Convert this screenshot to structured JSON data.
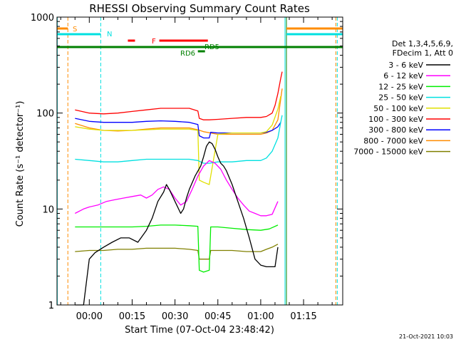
{
  "chart_data": {
    "type": "line",
    "title": "RHESSI Observing Summary Count Rates",
    "xlabel": "Start Time (07-Oct-04 23:48:42)",
    "ylabel": "Count Rate (s⁻¹ detector⁻¹)",
    "yscale": "log",
    "ylim": [
      1,
      1000
    ],
    "xlim_min": [
      -11.3,
      88.7
    ],
    "x_ticks": [
      {
        "t": 0,
        "label": "00:00"
      },
      {
        "t": 15,
        "label": "00:15"
      },
      {
        "t": 30,
        "label": "00:30"
      },
      {
        "t": 45,
        "label": "00:45"
      },
      {
        "t": 60,
        "label": "01:00"
      },
      {
        "t": 75,
        "label": "01:15"
      }
    ],
    "y_ticks": [
      {
        "v": 1,
        "label": "1"
      },
      {
        "v": 10,
        "label": "10"
      },
      {
        "v": 100,
        "label": "100"
      },
      {
        "v": 1000,
        "label": "1000"
      }
    ],
    "legend_title_lines": [
      "Det 1,3,4,5,6,9,",
      "FDecim 1, Att 0"
    ],
    "legend_placement": "right",
    "footer": "21-Oct-2021 10:03",
    "series": [
      {
        "name": "3 - 6 keV",
        "color": "#000000",
        "x": [
          -5,
          -4,
          -3,
          -2,
          0,
          2,
          5,
          8,
          11,
          14,
          17,
          20,
          22,
          24,
          26,
          27,
          28,
          30,
          32,
          33,
          34,
          35,
          37,
          39,
          40,
          41,
          42,
          43,
          44,
          45,
          46,
          47,
          48,
          50,
          52,
          54,
          56,
          58,
          60,
          62,
          64,
          65,
          66
        ],
        "y": [
          1,
          1,
          1,
          1,
          3,
          3.5,
          4,
          4.5,
          5,
          5,
          4.5,
          6,
          8,
          12,
          15,
          18,
          16,
          12,
          9,
          10,
          13,
          16,
          22,
          28,
          35,
          45,
          50,
          48,
          42,
          35,
          30,
          28,
          25,
          18,
          12,
          8,
          5,
          3,
          2.6,
          2.5,
          2.5,
          2.5,
          4
        ]
      },
      {
        "name": "6 - 12 keV",
        "color": "#ff00ff",
        "x": [
          -5,
          -2,
          0,
          3,
          6,
          9,
          12,
          15,
          18,
          20,
          22,
          24,
          26,
          28,
          30,
          32,
          34,
          36,
          38,
          40,
          42,
          44,
          46,
          48,
          50,
          52,
          54,
          56,
          58,
          60,
          62,
          64,
          66
        ],
        "y": [
          9,
          10,
          10.5,
          11,
          12,
          12.5,
          13,
          13.5,
          14,
          13,
          14,
          16,
          17,
          16,
          13,
          11,
          12,
          16,
          22,
          28,
          32,
          30,
          26,
          20,
          16,
          13,
          11,
          9.5,
          9,
          8.5,
          8.5,
          8.8,
          12
        ]
      },
      {
        "name": "12 - 25 keV",
        "color": "#00ee00",
        "x": [
          -5,
          0,
          5,
          10,
          15,
          20,
          25,
          30,
          35,
          38,
          38.5,
          40,
          42,
          42.5,
          45,
          50,
          55,
          60,
          63,
          66
        ],
        "y": [
          6.5,
          6.5,
          6.5,
          6.5,
          6.5,
          6.6,
          6.8,
          6.8,
          6.7,
          6.6,
          2.3,
          2.2,
          2.3,
          6.5,
          6.5,
          6.3,
          6.1,
          6,
          6.2,
          6.8
        ]
      },
      {
        "name": "25 - 50 keV",
        "color": "#00e0e0",
        "x": [
          -5,
          0,
          5,
          10,
          15,
          20,
          25,
          30,
          35,
          38,
          40,
          42,
          45,
          50,
          55,
          60,
          62,
          64,
          66,
          67,
          67.5
        ],
        "y": [
          33,
          32,
          31,
          31,
          32,
          33,
          33,
          33,
          33,
          32,
          30,
          30,
          31,
          31,
          32,
          32,
          34,
          40,
          55,
          80,
          95
        ]
      },
      {
        "name": "50 - 100 keV",
        "color": "#e0e000",
        "x": [
          -5,
          0,
          5,
          10,
          15,
          20,
          25,
          30,
          35,
          38,
          38.5,
          40,
          42,
          45,
          50,
          55,
          60,
          62,
          64,
          66,
          67
        ],
        "y": [
          72,
          68,
          66,
          66,
          66,
          67,
          68,
          68,
          68,
          66,
          20,
          19,
          18,
          60,
          62,
          62,
          62,
          64,
          75,
          110,
          150
        ]
      },
      {
        "name": "100 - 300 keV",
        "color": "#ff0000",
        "x": [
          -5,
          0,
          5,
          10,
          15,
          20,
          25,
          30,
          35,
          38,
          38.5,
          40,
          42,
          45,
          50,
          55,
          60,
          62,
          64,
          65,
          66,
          67,
          67.5
        ],
        "y": [
          108,
          100,
          98,
          100,
          104,
          108,
          112,
          112,
          112,
          105,
          88,
          85,
          85,
          86,
          88,
          90,
          90,
          92,
          100,
          120,
          160,
          230,
          270
        ]
      },
      {
        "name": "300 - 800 keV",
        "color": "#0000ff",
        "x": [
          -5,
          0,
          5,
          10,
          15,
          20,
          25,
          30,
          35,
          38,
          38.5,
          40,
          42,
          42.5,
          45,
          50,
          55,
          60,
          62,
          64,
          66,
          67
        ],
        "y": [
          88,
          82,
          80,
          80,
          80,
          82,
          83,
          82,
          80,
          76,
          58,
          55,
          55,
          63,
          62,
          62,
          62,
          62,
          63,
          66,
          72,
          80
        ]
      },
      {
        "name": "800 - 7000 keV",
        "color": "#ff8c00",
        "x": [
          -5,
          0,
          5,
          10,
          15,
          20,
          25,
          30,
          35,
          38,
          40,
          45,
          50,
          55,
          60,
          62,
          64,
          66,
          67,
          67.5
        ],
        "y": [
          78,
          70,
          66,
          65,
          66,
          68,
          70,
          70,
          70,
          67,
          64,
          60,
          60,
          60,
          60,
          62,
          66,
          85,
          140,
          180
        ]
      },
      {
        "name": "7000 - 15000 keV",
        "color": "#808000",
        "x": [
          -5,
          0,
          5,
          10,
          15,
          20,
          25,
          30,
          35,
          38,
          38.5,
          42,
          42.5,
          45,
          50,
          55,
          60,
          62,
          64,
          66
        ],
        "y": [
          3.6,
          3.7,
          3.7,
          3.8,
          3.8,
          3.9,
          3.9,
          3.9,
          3.8,
          3.7,
          3.0,
          3.0,
          3.7,
          3.7,
          3.7,
          3.6,
          3.6,
          3.8,
          4.0,
          4.3
        ]
      }
    ],
    "flags": [
      {
        "label": "S",
        "color": "#ff8c00",
        "t0": -11.3,
        "t1": -7.5
      },
      {
        "label": "N",
        "color": "#00e0e0",
        "t0": -11.3,
        "t1": 4.0
      },
      {
        "label": "F",
        "color": "#ff0000",
        "t0": 13.5,
        "t1": 16.0
      },
      {
        "label": "",
        "color": "#ff0000",
        "t0": 24.5,
        "t1": 41.5
      },
      {
        "label": "RD6",
        "color": "#008000",
        "t0": 38.0,
        "t1": 40.5
      },
      {
        "label": "RD5",
        "color": "#008000",
        "t0": -11.3,
        "t1": 88.7
      }
    ],
    "right_flags": [
      {
        "color": "#ff8c00",
        "t0": 69,
        "t1": 88.7
      },
      {
        "color": "#00e0e0",
        "t0": 69,
        "t1": 88.7
      }
    ],
    "vlines": [
      {
        "t": -11.2,
        "color": "#00e0e0",
        "style": "solid"
      },
      {
        "t": -7.5,
        "color": "#ff8c00",
        "style": "dashed"
      },
      {
        "t": 4.0,
        "color": "#00e0e0",
        "style": "dashed"
      },
      {
        "t": 68.5,
        "color": "#00e0e0",
        "style": "solid"
      },
      {
        "t": 69.0,
        "color": "#008000",
        "style": "solid"
      },
      {
        "t": 86.3,
        "color": "#ff8c00",
        "style": "dashed"
      },
      {
        "t": 86.8,
        "color": "#00e0e0",
        "style": "dashed"
      }
    ]
  }
}
